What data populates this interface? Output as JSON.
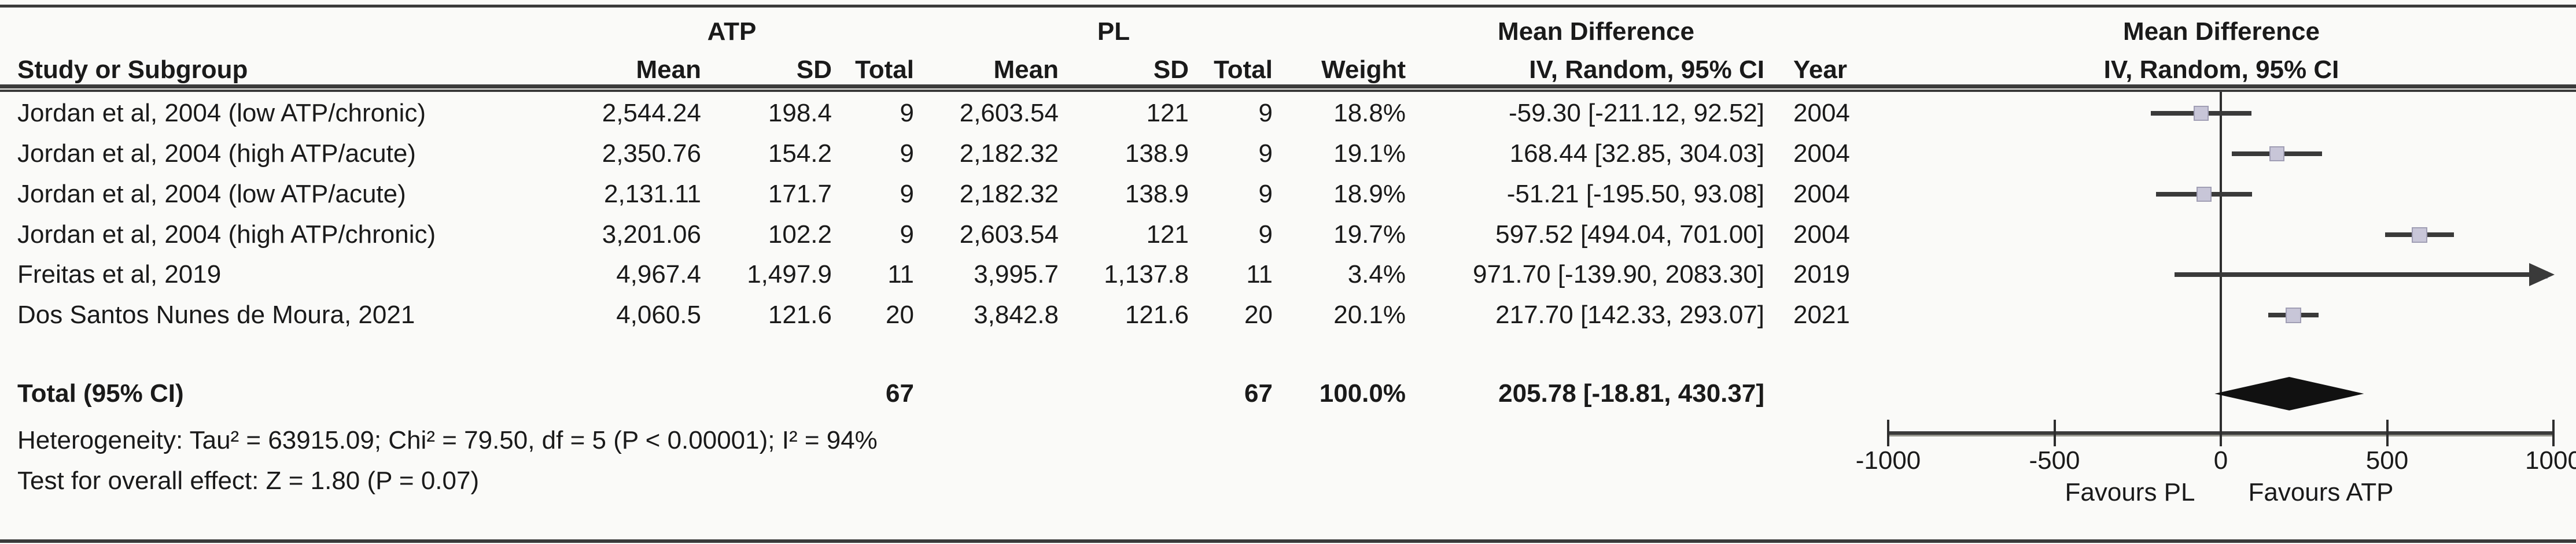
{
  "group_headers": {
    "atp": "ATP",
    "pl": "PL",
    "md_text_col": "Mean Difference",
    "md_plot_col": "Mean Difference"
  },
  "column_headers": {
    "study": "Study or Subgroup",
    "mean": "Mean",
    "sd": "SD",
    "total": "Total",
    "weight": "Weight",
    "iv_random": "IV, Random, 95% CI",
    "year": "Year"
  },
  "rows": [
    {
      "study": "Jordan et al, 2004 (low ATP/chronic)",
      "atp_mean": "2,544.24",
      "atp_sd": "198.4",
      "atp_total": "9",
      "pl_mean": "2,603.54",
      "pl_sd": "121",
      "pl_total": "9",
      "weight": "18.8%",
      "ci": "-59.30 [-211.12, 92.52]",
      "year": "2004"
    },
    {
      "study": "Jordan et al, 2004 (high ATP/acute)",
      "atp_mean": "2,350.76",
      "atp_sd": "154.2",
      "atp_total": "9",
      "pl_mean": "2,182.32",
      "pl_sd": "138.9",
      "pl_total": "9",
      "weight": "19.1%",
      "ci": "168.44 [32.85, 304.03]",
      "year": "2004"
    },
    {
      "study": "Jordan et al, 2004 (low ATP/acute)",
      "atp_mean": "2,131.11",
      "atp_sd": "171.7",
      "atp_total": "9",
      "pl_mean": "2,182.32",
      "pl_sd": "138.9",
      "pl_total": "9",
      "weight": "18.9%",
      "ci": "-51.21 [-195.50, 93.08]",
      "year": "2004"
    },
    {
      "study": "Jordan et al, 2004 (high ATP/chronic)",
      "atp_mean": "3,201.06",
      "atp_sd": "102.2",
      "atp_total": "9",
      "pl_mean": "2,603.54",
      "pl_sd": "121",
      "pl_total": "9",
      "weight": "19.7%",
      "ci": "597.52 [494.04, 701.00]",
      "year": "2004"
    },
    {
      "study": "Freitas et al, 2019",
      "atp_mean": "4,967.4",
      "atp_sd": "1,497.9",
      "atp_total": "11",
      "pl_mean": "3,995.7",
      "pl_sd": "1,137.8",
      "pl_total": "11",
      "weight": "3.4%",
      "ci": "971.70 [-139.90, 2083.30]",
      "year": "2019"
    },
    {
      "study": "Dos Santos Nunes de Moura, 2021",
      "atp_mean": "4,060.5",
      "atp_sd": "121.6",
      "atp_total": "20",
      "pl_mean": "3,842.8",
      "pl_sd": "121.6",
      "pl_total": "20",
      "weight": "20.1%",
      "ci": "217.70 [142.33, 293.07]",
      "year": "2021"
    }
  ],
  "total_row": {
    "label": "Total (95% CI)",
    "atp_total": "67",
    "pl_total": "67",
    "weight": "100.0%",
    "ci": "205.78 [-18.81, 430.37]"
  },
  "footer": {
    "heterogeneity": "Heterogeneity: Tau² = 63915.09; Chi² = 79.50, df = 5 (P < 0.00001); I² = 94%",
    "overall_effect": "Test for overall effect: Z = 1.80 (P = 0.07)"
  },
  "chart_data": {
    "type": "forest",
    "effect_measure": "Mean Difference",
    "model": "IV, Random, 95% CI",
    "x_range": [
      -1000,
      1000
    ],
    "axis_ticks": [
      "-1000",
      "-500",
      "0",
      "500",
      "1000"
    ],
    "favours_left": "Favours PL",
    "favours_right": "Favours ATP",
    "studies": [
      {
        "name": "Jordan et al, 2004 (low ATP/chronic)",
        "md": -59.3,
        "lo": -211.12,
        "hi": 92.52,
        "weight": 18.8,
        "year": 2004
      },
      {
        "name": "Jordan et al, 2004 (high ATP/acute)",
        "md": 168.44,
        "lo": 32.85,
        "hi": 304.03,
        "weight": 19.1,
        "year": 2004
      },
      {
        "name": "Jordan et al, 2004 (low ATP/acute)",
        "md": -51.21,
        "lo": -195.5,
        "hi": 93.08,
        "weight": 18.9,
        "year": 2004
      },
      {
        "name": "Jordan et al, 2004 (high ATP/chronic)",
        "md": 597.52,
        "lo": 494.04,
        "hi": 701.0,
        "weight": 19.7,
        "year": 2004
      },
      {
        "name": "Freitas et al, 2019",
        "md": 971.7,
        "lo": -139.9,
        "hi": 2083.3,
        "weight": 3.4,
        "year": 2019
      },
      {
        "name": "Dos Santos Nunes de Moura, 2021",
        "md": 217.7,
        "lo": 142.33,
        "hi": 293.07,
        "weight": 20.1,
        "year": 2021
      }
    ],
    "total": {
      "md": 205.78,
      "lo": -18.81,
      "hi": 430.37
    },
    "colors": {
      "marker_fill": "#c8c6d8",
      "marker_border": "#a09eb4",
      "line": "#3a3a3a",
      "diamond": "#111111",
      "background": "#fafaf8"
    }
  }
}
